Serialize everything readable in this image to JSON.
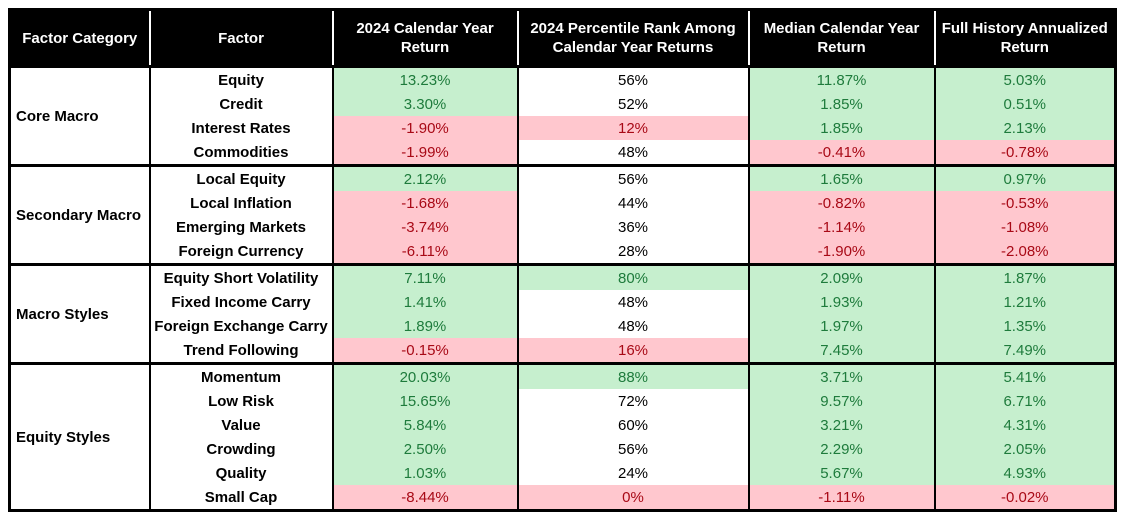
{
  "colors": {
    "header_bg": "#000000",
    "header_text": "#FFFFFF",
    "positive_bg": "#C6EFCE",
    "positive_text": "#1E7B3C",
    "negative_bg": "#FFC7CE",
    "negative_text": "#A80916",
    "neutral_bg": "#FFFFFF",
    "neutral_text": "#000000",
    "border": "#000000"
  },
  "chart_data": {
    "type": "table",
    "columns": [
      {
        "id": "factor-category",
        "label": "Factor Category"
      },
      {
        "id": "factor",
        "label": "Factor"
      },
      {
        "id": "cy2024-return",
        "label": "2024 Calendar Year\nReturn"
      },
      {
        "id": "percentile-rank",
        "label": "2024 Percentile Rank Among\nCalendar Year Returns"
      },
      {
        "id": "median-cy-return",
        "label": "Median Calendar Year\nReturn"
      },
      {
        "id": "full-history-return",
        "label": "Full History Annualized\nReturn"
      }
    ],
    "sections": [
      {
        "category": "Core Macro",
        "rows": [
          {
            "factor": "Equity",
            "values": [
              {
                "text": "13.23%",
                "tone": "pos"
              },
              {
                "text": "56%",
                "tone": "neutral"
              },
              {
                "text": "11.87%",
                "tone": "pos"
              },
              {
                "text": "5.03%",
                "tone": "pos"
              }
            ]
          },
          {
            "factor": "Credit",
            "values": [
              {
                "text": "3.30%",
                "tone": "pos"
              },
              {
                "text": "52%",
                "tone": "neutral"
              },
              {
                "text": "1.85%",
                "tone": "pos"
              },
              {
                "text": "0.51%",
                "tone": "pos"
              }
            ]
          },
          {
            "factor": "Interest Rates",
            "values": [
              {
                "text": "-1.90%",
                "tone": "neg"
              },
              {
                "text": "12%",
                "tone": "neg"
              },
              {
                "text": "1.85%",
                "tone": "pos"
              },
              {
                "text": "2.13%",
                "tone": "pos"
              }
            ]
          },
          {
            "factor": "Commodities",
            "values": [
              {
                "text": "-1.99%",
                "tone": "neg"
              },
              {
                "text": "48%",
                "tone": "neutral"
              },
              {
                "text": "-0.41%",
                "tone": "neg"
              },
              {
                "text": "-0.78%",
                "tone": "neg"
              }
            ]
          }
        ]
      },
      {
        "category": "Secondary Macro",
        "rows": [
          {
            "factor": "Local Equity",
            "values": [
              {
                "text": "2.12%",
                "tone": "pos"
              },
              {
                "text": "56%",
                "tone": "neutral"
              },
              {
                "text": "1.65%",
                "tone": "pos"
              },
              {
                "text": "0.97%",
                "tone": "pos"
              }
            ]
          },
          {
            "factor": "Local Inflation",
            "values": [
              {
                "text": "-1.68%",
                "tone": "neg"
              },
              {
                "text": "44%",
                "tone": "neutral"
              },
              {
                "text": "-0.82%",
                "tone": "neg"
              },
              {
                "text": "-0.53%",
                "tone": "neg"
              }
            ]
          },
          {
            "factor": "Emerging Markets",
            "values": [
              {
                "text": "-3.74%",
                "tone": "neg"
              },
              {
                "text": "36%",
                "tone": "neutral"
              },
              {
                "text": "-1.14%",
                "tone": "neg"
              },
              {
                "text": "-1.08%",
                "tone": "neg"
              }
            ]
          },
          {
            "factor": "Foreign Currency",
            "values": [
              {
                "text": "-6.11%",
                "tone": "neg"
              },
              {
                "text": "28%",
                "tone": "neutral"
              },
              {
                "text": "-1.90%",
                "tone": "neg"
              },
              {
                "text": "-2.08%",
                "tone": "neg"
              }
            ]
          }
        ]
      },
      {
        "category": "Macro Styles",
        "rows": [
          {
            "factor": "Equity Short Volatility",
            "values": [
              {
                "text": "7.11%",
                "tone": "pos"
              },
              {
                "text": "80%",
                "tone": "pos"
              },
              {
                "text": "2.09%",
                "tone": "pos"
              },
              {
                "text": "1.87%",
                "tone": "pos"
              }
            ]
          },
          {
            "factor": "Fixed Income Carry",
            "values": [
              {
                "text": "1.41%",
                "tone": "pos"
              },
              {
                "text": "48%",
                "tone": "neutral"
              },
              {
                "text": "1.93%",
                "tone": "pos"
              },
              {
                "text": "1.21%",
                "tone": "pos"
              }
            ]
          },
          {
            "factor": "Foreign Exchange Carry",
            "values": [
              {
                "text": "1.89%",
                "tone": "pos"
              },
              {
                "text": "48%",
                "tone": "neutral"
              },
              {
                "text": "1.97%",
                "tone": "pos"
              },
              {
                "text": "1.35%",
                "tone": "pos"
              }
            ]
          },
          {
            "factor": "Trend Following",
            "values": [
              {
                "text": "-0.15%",
                "tone": "neg"
              },
              {
                "text": "16%",
                "tone": "neg"
              },
              {
                "text": "7.45%",
                "tone": "pos"
              },
              {
                "text": "7.49%",
                "tone": "pos"
              }
            ]
          }
        ]
      },
      {
        "category": "Equity Styles",
        "rows": [
          {
            "factor": "Momentum",
            "values": [
              {
                "text": "20.03%",
                "tone": "pos"
              },
              {
                "text": "88%",
                "tone": "pos"
              },
              {
                "text": "3.71%",
                "tone": "pos"
              },
              {
                "text": "5.41%",
                "tone": "pos"
              }
            ]
          },
          {
            "factor": "Low Risk",
            "values": [
              {
                "text": "15.65%",
                "tone": "pos"
              },
              {
                "text": "72%",
                "tone": "neutral"
              },
              {
                "text": "9.57%",
                "tone": "pos"
              },
              {
                "text": "6.71%",
                "tone": "pos"
              }
            ]
          },
          {
            "factor": "Value",
            "values": [
              {
                "text": "5.84%",
                "tone": "pos"
              },
              {
                "text": "60%",
                "tone": "neutral"
              },
              {
                "text": "3.21%",
                "tone": "pos"
              },
              {
                "text": "4.31%",
                "tone": "pos"
              }
            ]
          },
          {
            "factor": "Crowding",
            "values": [
              {
                "text": "2.50%",
                "tone": "pos"
              },
              {
                "text": "56%",
                "tone": "neutral"
              },
              {
                "text": "2.29%",
                "tone": "pos"
              },
              {
                "text": "2.05%",
                "tone": "pos"
              }
            ]
          },
          {
            "factor": "Quality",
            "values": [
              {
                "text": "1.03%",
                "tone": "pos"
              },
              {
                "text": "24%",
                "tone": "neutral"
              },
              {
                "text": "5.67%",
                "tone": "pos"
              },
              {
                "text": "4.93%",
                "tone": "pos"
              }
            ]
          },
          {
            "factor": "Small Cap",
            "values": [
              {
                "text": "-8.44%",
                "tone": "neg"
              },
              {
                "text": "0%",
                "tone": "neg"
              },
              {
                "text": "-1.11%",
                "tone": "neg"
              },
              {
                "text": "-0.02%",
                "tone": "neg"
              }
            ]
          }
        ]
      }
    ]
  }
}
